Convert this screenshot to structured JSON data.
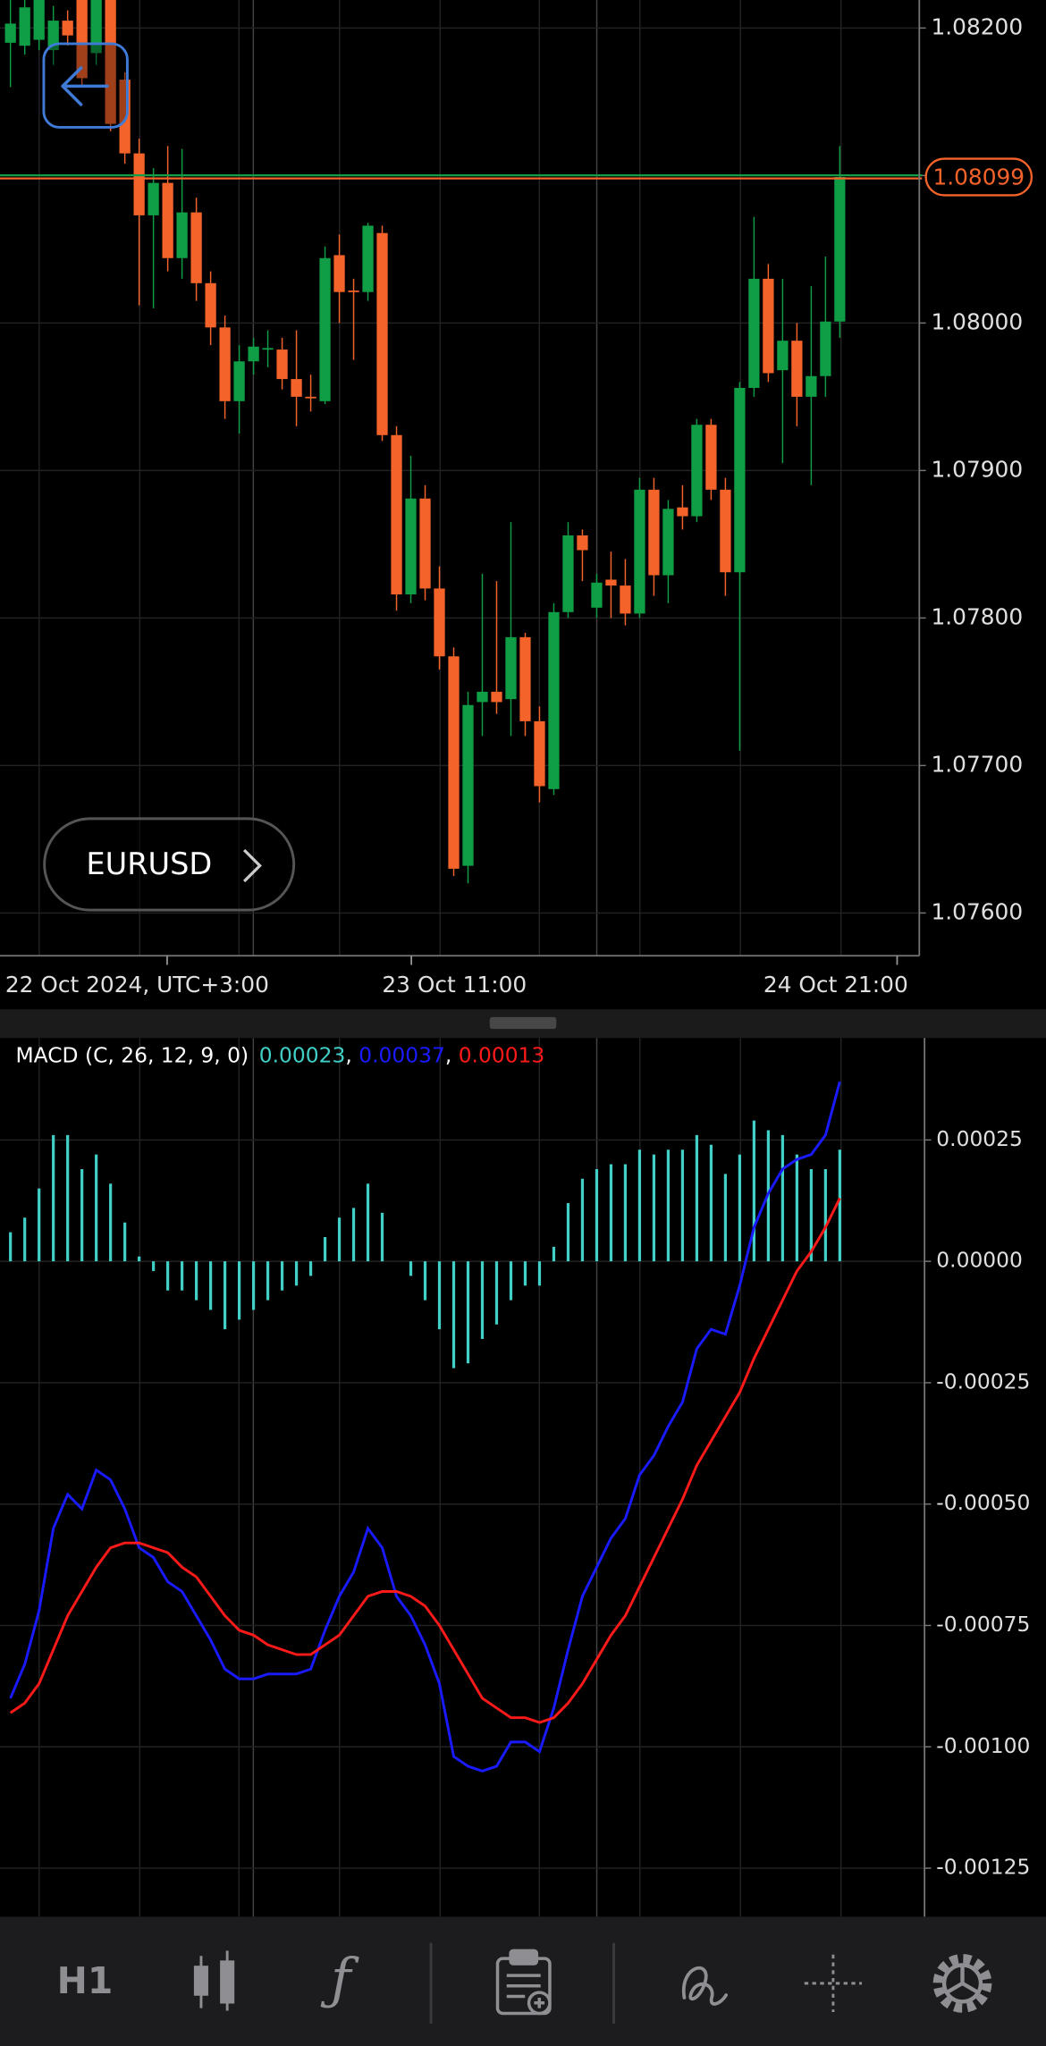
{
  "chart_data": [
    {
      "type": "candlestick",
      "ylim": [
        1.07571,
        1.08219
      ],
      "yticks": [
        {
          "value": 1.082,
          "label": "1.08200"
        },
        {
          "value": 1.081,
          "label": "1.08100"
        },
        {
          "value": 1.08,
          "label": "1.08000"
        },
        {
          "value": 1.079,
          "label": "1.07900"
        },
        {
          "value": 1.078,
          "label": "1.07800"
        },
        {
          "value": 1.077,
          "label": "1.07700"
        },
        {
          "value": 1.076,
          "label": "1.07600"
        }
      ],
      "x_labels": [
        "22 Oct 2024, UTC+3:00",
        "23 Oct 11:00",
        "24 Oct 21:00"
      ],
      "up_color": "#0f9d45",
      "down_color": "#f4632a",
      "grid": true,
      "current_price": 1.08099,
      "candles": [
        [
          1.0819,
          1.08219,
          1.0816,
          1.08203
        ],
        [
          1.08188,
          1.08219,
          1.08182,
          1.08214
        ],
        [
          1.08192,
          1.08219,
          1.08185,
          1.08219
        ],
        [
          1.08185,
          1.08215,
          1.08175,
          1.08205
        ],
        [
          1.08205,
          1.08212,
          1.08188,
          1.08195
        ],
        [
          1.08219,
          1.08219,
          1.0816,
          1.08166
        ],
        [
          1.08183,
          1.08219,
          1.08175,
          1.08219
        ],
        [
          1.08219,
          1.08219,
          1.0813,
          1.08135
        ],
        [
          1.08165,
          1.0817,
          1.08108,
          1.08115
        ],
        [
          1.08115,
          1.08125,
          1.08012,
          1.08073
        ],
        [
          1.08073,
          1.08105,
          1.0801,
          1.08095
        ],
        [
          1.08095,
          1.0812,
          1.08035,
          1.08044
        ],
        [
          1.08044,
          1.08118,
          1.0803,
          1.08075
        ],
        [
          1.08075,
          1.08085,
          1.08015,
          1.08027
        ],
        [
          1.08027,
          1.08035,
          1.07985,
          1.07997
        ],
        [
          1.07997,
          1.08005,
          1.07935,
          1.07947
        ],
        [
          1.07947,
          1.07985,
          1.07925,
          1.07974
        ],
        [
          1.07974,
          1.0799,
          1.07965,
          1.07984
        ],
        [
          1.07982,
          1.07995,
          1.0797,
          1.07983
        ],
        [
          1.07982,
          1.0799,
          1.07955,
          1.07962
        ],
        [
          1.07962,
          1.07995,
          1.0793,
          1.0795
        ],
        [
          1.0795,
          1.07965,
          1.0794,
          1.07949
        ],
        [
          1.07947,
          1.08052,
          1.07945,
          1.08044
        ],
        [
          1.08046,
          1.0806,
          1.08,
          1.08021
        ],
        [
          1.08022,
          1.0803,
          1.07975,
          1.08021
        ],
        [
          1.08021,
          1.08068,
          1.08015,
          1.08066
        ],
        [
          1.08061,
          1.08066,
          1.0792,
          1.07924
        ],
        [
          1.07924,
          1.0793,
          1.07805,
          1.07816
        ],
        [
          1.07816,
          1.0791,
          1.0781,
          1.07881
        ],
        [
          1.07881,
          1.0789,
          1.07812,
          1.0782
        ],
        [
          1.0782,
          1.07835,
          1.07765,
          1.07774
        ],
        [
          1.07774,
          1.0778,
          1.07625,
          1.0763
        ],
        [
          1.07632,
          1.0775,
          1.0762,
          1.07741
        ],
        [
          1.07743,
          1.0783,
          1.0772,
          1.0775
        ],
        [
          1.0775,
          1.07825,
          1.07735,
          1.07743
        ],
        [
          1.07745,
          1.07865,
          1.0772,
          1.07787
        ],
        [
          1.07787,
          1.0779,
          1.0772,
          1.0773
        ],
        [
          1.0773,
          1.0774,
          1.07675,
          1.07686
        ],
        [
          1.07684,
          1.0781,
          1.0768,
          1.07804
        ],
        [
          1.07804,
          1.07865,
          1.078,
          1.07856
        ],
        [
          1.07856,
          1.0786,
          1.07825,
          1.07846
        ],
        [
          1.07807,
          1.0783,
          1.078,
          1.07824
        ],
        [
          1.07826,
          1.07845,
          1.078,
          1.07822
        ],
        [
          1.07822,
          1.0784,
          1.07795,
          1.07803
        ],
        [
          1.07803,
          1.07895,
          1.078,
          1.07887
        ],
        [
          1.07887,
          1.07895,
          1.07815,
          1.07829
        ],
        [
          1.07829,
          1.0788,
          1.0781,
          1.07874
        ],
        [
          1.07875,
          1.0789,
          1.0786,
          1.07869
        ],
        [
          1.07869,
          1.07935,
          1.07865,
          1.07931
        ],
        [
          1.07931,
          1.07935,
          1.0788,
          1.07887
        ],
        [
          1.07887,
          1.07895,
          1.07815,
          1.07831
        ],
        [
          1.07831,
          1.0796,
          1.0771,
          1.07956
        ],
        [
          1.07956,
          1.08072,
          1.0795,
          1.0803
        ],
        [
          1.0803,
          1.0804,
          1.0796,
          1.07966
        ],
        [
          1.07968,
          1.0803,
          1.07905,
          1.07988
        ],
        [
          1.07988,
          1.08,
          1.0793,
          1.0795
        ],
        [
          1.0795,
          1.08025,
          1.0789,
          1.07964
        ],
        [
          1.07964,
          1.08045,
          1.0795,
          1.08001
        ],
        [
          1.08001,
          1.0812,
          1.0799,
          1.08099
        ]
      ]
    },
    {
      "type": "macd",
      "title": "MACD (C, 26, 12, 9, 0)",
      "legend_separator": ", ",
      "ylim": [
        -0.00135,
        0.00046
      ],
      "yticks": [
        {
          "value": 0.00025,
          "label": "0.00025"
        },
        {
          "value": 0,
          "label": "0.00000"
        },
        {
          "value": -0.00025,
          "label": "-0.00025"
        },
        {
          "value": -0.0005,
          "label": "-0.00050"
        },
        {
          "value": -0.00075,
          "label": "-0.00075"
        },
        {
          "value": -0.001,
          "label": "-0.00100"
        },
        {
          "value": -0.00125,
          "label": "-0.00125"
        }
      ],
      "grid": true,
      "histogram": {
        "color": "#40d0c8",
        "values": [
          6e-05,
          9e-05,
          0.00015,
          0.00026,
          0.00026,
          0.00019,
          0.00022,
          0.00016,
          8e-05,
          1e-05,
          -2e-05,
          -6e-05,
          -6e-05,
          -8e-05,
          -0.0001,
          -0.00014,
          -0.00012,
          -0.0001,
          -8e-05,
          -6e-05,
          -5e-05,
          -3e-05,
          5e-05,
          9e-05,
          0.00011,
          0.00016,
          0.0001,
          0,
          -3e-05,
          -8e-05,
          -0.00014,
          -0.00022,
          -0.00021,
          -0.00016,
          -0.00013,
          -8e-05,
          -5e-05,
          -5e-05,
          3e-05,
          0.00012,
          0.00017,
          0.00019,
          0.0002,
          0.0002,
          0.00023,
          0.00022,
          0.00023,
          0.00023,
          0.00026,
          0.00024,
          0.00018,
          0.00022,
          0.00029,
          0.00027,
          0.00026,
          0.00022,
          0.00019,
          0.00019,
          0.00023
        ]
      },
      "series": [
        {
          "color": "#1a1aff",
          "values": [
            -0.0009,
            -0.00083,
            -0.00072,
            -0.00055,
            -0.00048,
            -0.00051,
            -0.00043,
            -0.00045,
            -0.00051,
            -0.00059,
            -0.00061,
            -0.00066,
            -0.00068,
            -0.00073,
            -0.00078,
            -0.00084,
            -0.00086,
            -0.00086,
            -0.00085,
            -0.00085,
            -0.00085,
            -0.00084,
            -0.00076,
            -0.00069,
            -0.00064,
            -0.00055,
            -0.00059,
            -0.00069,
            -0.00073,
            -0.00079,
            -0.00087,
            -0.00102,
            -0.00104,
            -0.00105,
            -0.00104,
            -0.00099,
            -0.00099,
            -0.00101,
            -0.00092,
            -0.0008,
            -0.00069,
            -0.00063,
            -0.00057,
            -0.00053,
            -0.00044,
            -0.0004,
            -0.00034,
            -0.00029,
            -0.00018,
            -0.00014,
            -0.00015,
            -5e-05,
            7e-05,
            0.00014,
            0.00019,
            0.00021,
            0.00022,
            0.00026,
            0.00037
          ]
        },
        {
          "color": "#ff1a1a",
          "values": [
            -0.00093,
            -0.00091,
            -0.00087,
            -0.0008,
            -0.00073,
            -0.00068,
            -0.00063,
            -0.00059,
            -0.00058,
            -0.00058,
            -0.00059,
            -0.0006,
            -0.00063,
            -0.00065,
            -0.00069,
            -0.00073,
            -0.00076,
            -0.00077,
            -0.00079,
            -0.0008,
            -0.00081,
            -0.00081,
            -0.00079,
            -0.00077,
            -0.00073,
            -0.00069,
            -0.00068,
            -0.00068,
            -0.00069,
            -0.00071,
            -0.00075,
            -0.0008,
            -0.00085,
            -0.0009,
            -0.00092,
            -0.00094,
            -0.00094,
            -0.00095,
            -0.00094,
            -0.00091,
            -0.00087,
            -0.00082,
            -0.00077,
            -0.00073,
            -0.00067,
            -0.00061,
            -0.00055,
            -0.00049,
            -0.00042,
            -0.00037,
            -0.00032,
            -0.00027,
            -0.0002,
            -0.00014,
            -8e-05,
            -2e-05,
            2e-05,
            7e-05,
            0.00013
          ]
        }
      ]
    }
  ],
  "symbol_button": {
    "label": "EURUSD"
  },
  "toolbar": {
    "timeframe": "H1"
  }
}
